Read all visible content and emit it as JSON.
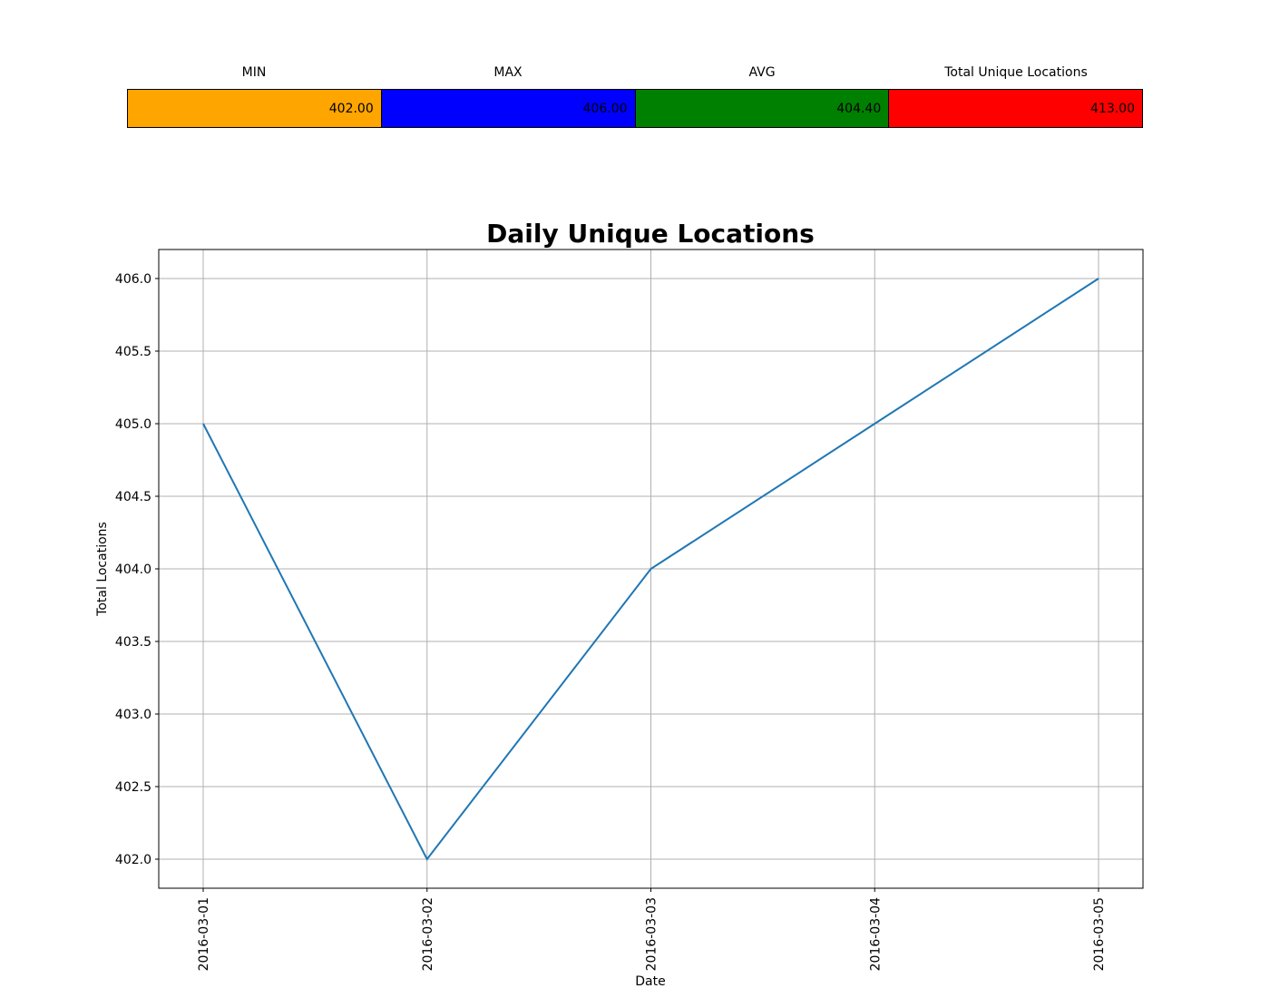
{
  "stats": {
    "headers": [
      "MIN",
      "MAX",
      "AVG",
      "Total Unique Locations"
    ],
    "values": [
      "402.00",
      "406.00",
      "404.40",
      "413.00"
    ],
    "colors": [
      "#ffa500",
      "#0000ff",
      "#008000",
      "#ff0000"
    ]
  },
  "chart_data": {
    "type": "line",
    "title": "Daily Unique Locations",
    "xlabel": "Date",
    "ylabel": "Total Locations",
    "x": [
      "2016-03-01",
      "2016-03-02",
      "2016-03-03",
      "2016-03-04",
      "2016-03-05"
    ],
    "series": [
      {
        "values": [
          405,
          402,
          404,
          405,
          406
        ],
        "color": "#1f77b4"
      }
    ],
    "yticks": [
      "402.0",
      "402.5",
      "403.0",
      "403.5",
      "404.0",
      "404.5",
      "405.0",
      "405.5",
      "406.0"
    ],
    "ylim": [
      401.8,
      406.2
    ],
    "grid": true
  }
}
